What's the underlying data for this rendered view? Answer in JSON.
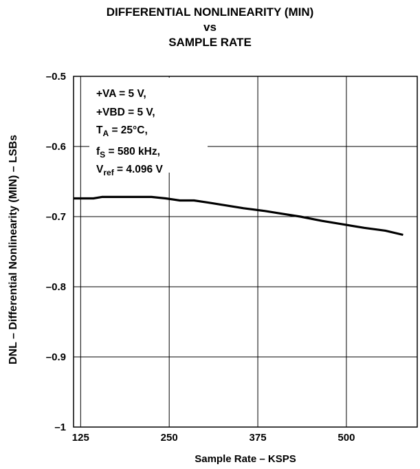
{
  "chart_data": {
    "type": "line",
    "title": [
      "DIFFERENTIAL NONLINEARITY (MIN)",
      "vs",
      "SAMPLE RATE"
    ],
    "xlabel": "Sample Rate – KSPS",
    "ylabel": "DNL – Differential Nonlinearity (MIN) – LSBs",
    "xlim": [
      115,
      600
    ],
    "ylim": [
      -1,
      -0.5
    ],
    "xticks": [
      125,
      250,
      375,
      500
    ],
    "xtick_labels": [
      "125",
      "250",
      "375",
      "500"
    ],
    "yticks": [
      -0.5,
      -0.6,
      -0.7,
      -0.8,
      -0.9,
      -1
    ],
    "ytick_labels": [
      "–0.5",
      "–0.6",
      "–0.7",
      "–0.8",
      "–0.9",
      "–1"
    ],
    "grid": true,
    "series": [
      {
        "x": [
          115,
          143,
          155,
          190,
          225,
          245,
          265,
          285,
          305,
          330,
          355,
          385,
          410,
          435,
          465,
          495,
          525,
          555,
          580
        ],
        "y": [
          -0.674,
          -0.674,
          -0.672,
          -0.672,
          -0.672,
          -0.674,
          -0.677,
          -0.677,
          -0.68,
          -0.684,
          -0.688,
          -0.692,
          -0.696,
          -0.7,
          -0.706,
          -0.711,
          -0.716,
          -0.72,
          -0.726
        ]
      }
    ],
    "annotations": [
      {
        "parts": [
          [
            "+VA = 5 V,",
            ""
          ]
        ]
      },
      {
        "parts": [
          [
            "+VBD = 5 V,",
            ""
          ]
        ]
      },
      {
        "parts": [
          [
            "T",
            ""
          ],
          [
            "A",
            "sub"
          ],
          [
            " = 25°C,",
            ""
          ]
        ]
      },
      {
        "parts": [
          [
            "f",
            ""
          ],
          [
            "S",
            "sub"
          ],
          [
            " = 580 kHz,",
            ""
          ]
        ]
      },
      {
        "parts": [
          [
            "V",
            ""
          ],
          [
            "ref",
            "sub"
          ],
          [
            " = 4.096 V",
            ""
          ]
        ]
      }
    ]
  }
}
